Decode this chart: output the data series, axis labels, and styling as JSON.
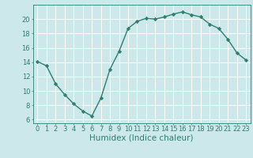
{
  "x": [
    0,
    1,
    2,
    3,
    4,
    5,
    6,
    7,
    8,
    9,
    10,
    11,
    12,
    13,
    14,
    15,
    16,
    17,
    18,
    19,
    20,
    21,
    22,
    23
  ],
  "y": [
    14.1,
    13.5,
    11.0,
    9.5,
    8.2,
    7.2,
    6.5,
    9.0,
    13.0,
    15.5,
    18.7,
    19.7,
    20.1,
    20.0,
    20.3,
    20.7,
    21.0,
    20.6,
    20.3,
    19.3,
    18.7,
    17.2,
    15.3,
    14.3
  ],
  "line_color": "#2e7d6e",
  "marker": "D",
  "marker_size": 2.2,
  "bg_color": "#cde8ea",
  "grid_color": "#ffffff",
  "xlabel": "Humidex (Indice chaleur)",
  "xlim": [
    -0.5,
    23.5
  ],
  "ylim": [
    5.5,
    22.0
  ],
  "yticks": [
    6,
    8,
    10,
    12,
    14,
    16,
    18,
    20
  ],
  "xticks": [
    0,
    1,
    2,
    3,
    4,
    5,
    6,
    7,
    8,
    9,
    10,
    11,
    12,
    13,
    14,
    15,
    16,
    17,
    18,
    19,
    20,
    21,
    22,
    23
  ],
  "tick_label_fontsize": 6.0,
  "xlabel_fontsize": 7.5,
  "line_width": 1.0
}
